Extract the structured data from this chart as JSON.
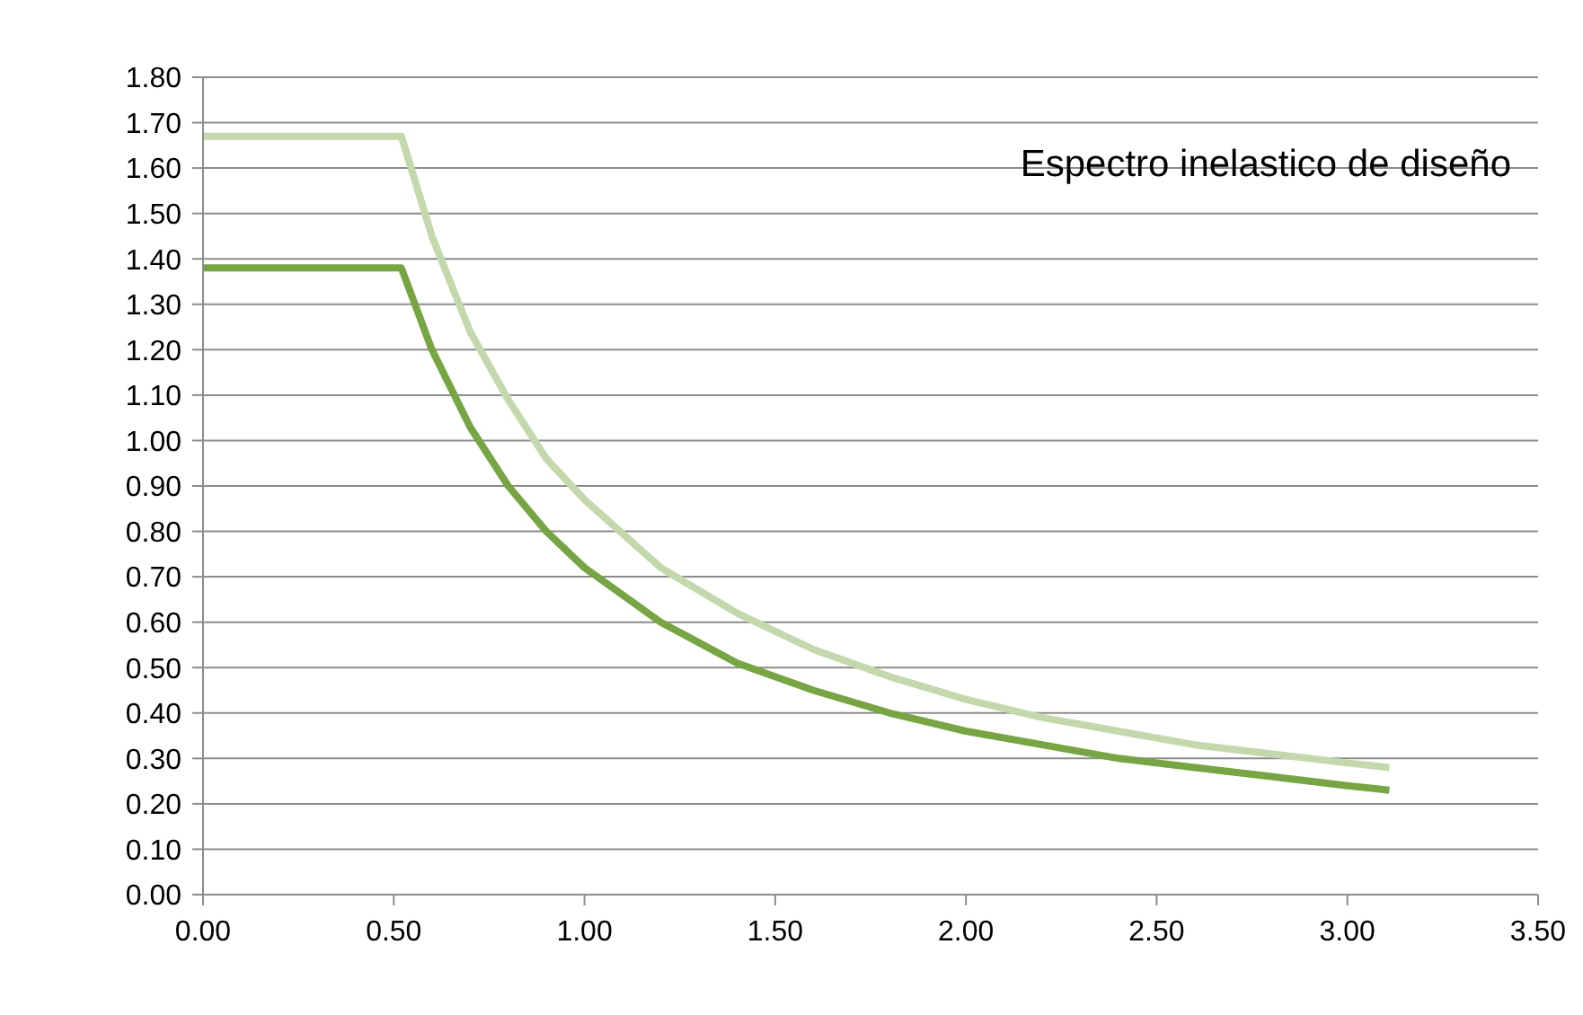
{
  "chart_data": {
    "type": "line",
    "annotations": [
      "Espectro inelastico de diseño"
    ],
    "x": [
      0,
      0.52,
      0.6,
      0.7,
      0.8,
      0.9,
      1.0,
      1.2,
      1.4,
      1.6,
      1.8,
      2.0,
      2.2,
      2.4,
      2.6,
      2.8,
      3.0,
      3.11
    ],
    "series": [
      {
        "color": "#c3d9ad",
        "values": [
          1.67,
          1.67,
          1.45,
          1.24,
          1.09,
          0.96,
          0.87,
          0.72,
          0.62,
          0.54,
          0.48,
          0.43,
          0.39,
          0.36,
          0.33,
          0.31,
          0.29,
          0.28
        ]
      },
      {
        "color": "#78a543",
        "values": [
          1.38,
          1.38,
          1.2,
          1.03,
          0.9,
          0.8,
          0.72,
          0.6,
          0.51,
          0.45,
          0.4,
          0.36,
          0.33,
          0.3,
          0.28,
          0.26,
          0.24,
          0.23
        ]
      }
    ],
    "xlim": [
      0,
      3.5
    ],
    "xticks": [
      {
        "value": 0,
        "label": "0.00"
      },
      {
        "value": 0.5,
        "label": "0.50"
      },
      {
        "value": 1,
        "label": "1.00"
      },
      {
        "value": 1.5,
        "label": "1.50"
      },
      {
        "value": 2,
        "label": "2.00"
      },
      {
        "value": 2.5,
        "label": "2.50"
      },
      {
        "value": 3,
        "label": "3.00"
      },
      {
        "value": 3.5,
        "label": "3.50"
      }
    ],
    "ylim": [
      0,
      1.8
    ],
    "yticks": [
      {
        "value": 0,
        "label": "0.00"
      },
      {
        "value": 0.1,
        "label": "0.10"
      },
      {
        "value": 0.2,
        "label": "0.20"
      },
      {
        "value": 0.3,
        "label": "0.30"
      },
      {
        "value": 0.4,
        "label": "0.40"
      },
      {
        "value": 0.5,
        "label": "0.50"
      },
      {
        "value": 0.6,
        "label": "0.60"
      },
      {
        "value": 0.7,
        "label": "0.70"
      },
      {
        "value": 0.8,
        "label": "0.80"
      },
      {
        "value": 0.9,
        "label": "0.90"
      },
      {
        "value": 1.0,
        "label": "1.00"
      },
      {
        "value": 1.1,
        "label": "1.10"
      },
      {
        "value": 1.2,
        "label": "1.20"
      },
      {
        "value": 1.3,
        "label": "1.30"
      },
      {
        "value": 1.4,
        "label": "1.40"
      },
      {
        "value": 1.5,
        "label": "1.50"
      },
      {
        "value": 1.6,
        "label": "1.60"
      },
      {
        "value": 1.7,
        "label": "1.70"
      },
      {
        "value": 1.8,
        "label": "1.80"
      }
    ],
    "grid": "y",
    "marker": "none",
    "line_style": "solid"
  }
}
